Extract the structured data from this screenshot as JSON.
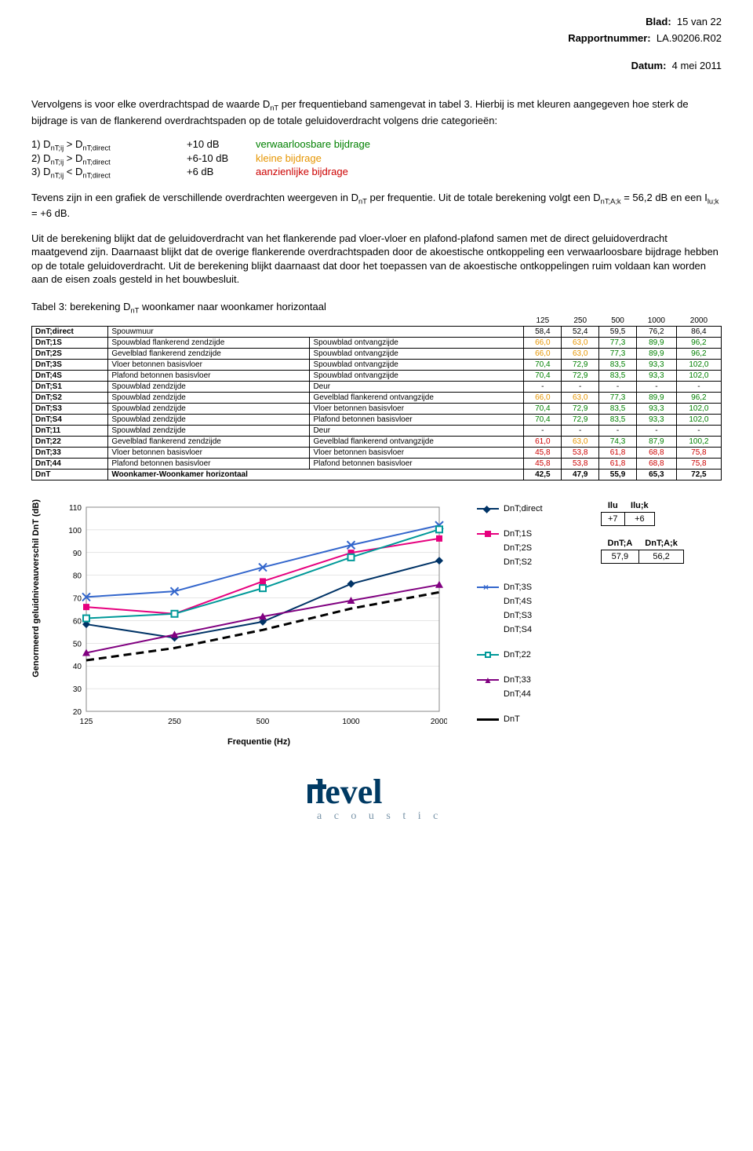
{
  "header": {
    "blad_label": "Blad:",
    "blad_value": "15 van 22",
    "rapport_label": "Rapportnummer:",
    "rapport_value": "LA.90206.R02",
    "datum_label": "Datum:",
    "datum_value": "4 mei 2011"
  },
  "body": {
    "p1": "Vervolgens is voor elke overdrachtspad de waarde D",
    "p1b": " per frequentieband samengevat in tabel 3. Hierbij is met kleuren aangegeven hoe sterk de bijdrage is van de flankerend overdrachtspaden op de totale geluidoverdracht volgens drie categorieën:",
    "cat1_l": "1) D",
    "cat1_m": " > D",
    "cat1_db": "+10 dB",
    "cat1_t": "verwaarloosbare bijdrage",
    "cat2_l": "2) D",
    "cat2_m": " > D",
    "cat2_db": "+6-10 dB",
    "cat2_t": "kleine bijdrage",
    "cat3_l": "3) D",
    "cat3_m": " < D",
    "cat3_db": "+6 dB",
    "cat3_t": "aanzienlijke bijdrage",
    "sub_ij": "nT;ij",
    "sub_dir": "nT;direct",
    "sub_nt": "nT",
    "p2a": "Tevens zijn in een grafiek de verschillende overdrachten weergeven in D",
    "p2b": " per frequentie. Uit de totale berekening volgt een D",
    "p2c": " = 56,2 dB en een I",
    "p2d": " = +6 dB.",
    "sub_ak": "nT;A;k",
    "sub_luk": "lu;k",
    "p3": "Uit de berekening blijkt dat de geluidoverdracht van het flankerende pad vloer-vloer en plafond-plafond samen met de direct geluidoverdracht maatgevend zijn. Daarnaast blijkt dat de overige flankerende overdrachtspaden door de akoestische ontkoppeling een verwaarloosbare bijdrage hebben op de totale geluidoverdracht. Uit de berekening blijkt daarnaast dat door het toepassen van de akoestische ontkoppelingen ruim voldaan kan worden aan de eisen zoals gesteld in het bouwbesluit.",
    "tbltitle_a": "Tabel 3: berekening D",
    "tbltitle_b": " woonkamer naar woonkamer horizontaal"
  },
  "colors": {
    "green": "#008000",
    "orange": "#e69500",
    "red": "#cc0000",
    "navy": "#003366",
    "magenta": "#e6007e",
    "blue": "#3366cc",
    "teal": "#009999",
    "purple": "#800080",
    "black": "#000000"
  },
  "table": {
    "freq_headers": [
      "125",
      "250",
      "500",
      "1000",
      "2000"
    ],
    "rows": [
      {
        "id": "DnT;direct",
        "d1": "Spouwmuur",
        "d2": "",
        "v": [
          "58,4",
          "52,4",
          "59,5",
          "76,2",
          "86,4"
        ],
        "c": [
          "k",
          "k",
          "k",
          "k",
          "k"
        ]
      },
      {
        "id": "DnT;1S",
        "d1": "Spouwblad flankerend zendzijde",
        "d2": "Spouwblad ontvangzijde",
        "v": [
          "66,0",
          "63,0",
          "77,3",
          "89,9",
          "96,2"
        ],
        "c": [
          "o",
          "o",
          "g",
          "g",
          "g"
        ]
      },
      {
        "id": "DnT;2S",
        "d1": "Gevelblad flankerend zendzijde",
        "d2": "Spouwblad ontvangzijde",
        "v": [
          "66,0",
          "63,0",
          "77,3",
          "89,9",
          "96,2"
        ],
        "c": [
          "o",
          "o",
          "g",
          "g",
          "g"
        ]
      },
      {
        "id": "DnT;3S",
        "d1": "Vloer betonnen basisvloer",
        "d2": "Spouwblad ontvangzijde",
        "v": [
          "70,4",
          "72,9",
          "83,5",
          "93,3",
          "102,0"
        ],
        "c": [
          "g",
          "g",
          "g",
          "g",
          "g"
        ]
      },
      {
        "id": "DnT;4S",
        "d1": "Plafond betonnen basisvloer",
        "d2": "Spouwblad ontvangzijde",
        "v": [
          "70,4",
          "72,9",
          "83,5",
          "93,3",
          "102,0"
        ],
        "c": [
          "g",
          "g",
          "g",
          "g",
          "g"
        ]
      },
      {
        "id": "DnT;S1",
        "d1": "Spouwblad zendzijde",
        "d2": "Deur",
        "v": [
          "-",
          "-",
          "-",
          "-",
          "-"
        ],
        "c": [
          "k",
          "k",
          "k",
          "k",
          "k"
        ]
      },
      {
        "id": "DnT;S2",
        "d1": "Spouwblad zendzijde",
        "d2": "Gevelblad flankerend ontvangzijde",
        "v": [
          "66,0",
          "63,0",
          "77,3",
          "89,9",
          "96,2"
        ],
        "c": [
          "o",
          "o",
          "g",
          "g",
          "g"
        ]
      },
      {
        "id": "DnT;S3",
        "d1": "Spouwblad zendzijde",
        "d2": "Vloer betonnen basisvloer",
        "v": [
          "70,4",
          "72,9",
          "83,5",
          "93,3",
          "102,0"
        ],
        "c": [
          "g",
          "g",
          "g",
          "g",
          "g"
        ]
      },
      {
        "id": "DnT;S4",
        "d1": "Spouwblad zendzijde",
        "d2": "Plafond betonnen basisvloer",
        "v": [
          "70,4",
          "72,9",
          "83,5",
          "93,3",
          "102,0"
        ],
        "c": [
          "g",
          "g",
          "g",
          "g",
          "g"
        ]
      },
      {
        "id": "DnT;11",
        "d1": "Spouwblad zendzijde",
        "d2": "Deur",
        "v": [
          "-",
          "-",
          "-",
          "-",
          "-"
        ],
        "c": [
          "k",
          "k",
          "k",
          "k",
          "k"
        ]
      },
      {
        "id": "DnT;22",
        "d1": "Gevelblad flankerend zendzijde",
        "d2": "Gevelblad flankerend ontvangzijde",
        "v": [
          "61,0",
          "63,0",
          "74,3",
          "87,9",
          "100,2"
        ],
        "c": [
          "r",
          "o",
          "g",
          "g",
          "g"
        ]
      },
      {
        "id": "DnT;33",
        "d1": "Vloer betonnen basisvloer",
        "d2": "Vloer betonnen basisvloer",
        "v": [
          "45,8",
          "53,8",
          "61,8",
          "68,8",
          "75,8"
        ],
        "c": [
          "r",
          "r",
          "r",
          "r",
          "r"
        ]
      },
      {
        "id": "DnT;44",
        "d1": "Plafond betonnen basisvloer",
        "d2": "Plafond betonnen basisvloer",
        "v": [
          "45,8",
          "53,8",
          "61,8",
          "68,8",
          "75,8"
        ],
        "c": [
          "r",
          "r",
          "r",
          "r",
          "r"
        ]
      },
      {
        "id": "DnT",
        "d1": "Woonkamer-Woonkamer horizontaal",
        "d2": "",
        "v": [
          "42,5",
          "47,9",
          "55,9",
          "65,3",
          "72,5"
        ],
        "c": [
          "k",
          "k",
          "k",
          "k",
          "k"
        ],
        "bold": true
      }
    ]
  },
  "chart": {
    "ylabel": "Genormeerd geluidniveauverschil DnT (dB)",
    "xlabel": "Frequentie (Hz)",
    "xticks": [
      "125",
      "250",
      "500",
      "1000",
      "2000"
    ],
    "yticks": [
      20,
      30,
      40,
      50,
      60,
      70,
      80,
      90,
      100,
      110
    ],
    "ymin": 20,
    "ymax": 110,
    "series": [
      {
        "name": "DnT;direct",
        "color": "#003366",
        "marker": "diamond",
        "vals": [
          58.4,
          52.4,
          59.5,
          76.2,
          86.4
        ]
      },
      {
        "name": "DnT;1S",
        "color": "#e6007e",
        "marker": "square",
        "vals": [
          66,
          63,
          77.3,
          89.9,
          96.2
        ]
      },
      {
        "name": "DnT;3S",
        "color": "#3366cc",
        "marker": "x",
        "vals": [
          70.4,
          72.9,
          83.5,
          93.3,
          102.0
        ]
      },
      {
        "name": "DnT;22",
        "color": "#009999",
        "marker": "squareO",
        "vals": [
          61,
          63,
          74.3,
          87.9,
          100.2
        ]
      },
      {
        "name": "DnT;33",
        "color": "#800080",
        "marker": "triangle",
        "vals": [
          45.8,
          53.8,
          61.8,
          68.8,
          75.8
        ]
      },
      {
        "name": "DnT",
        "color": "#000000",
        "marker": "dash",
        "vals": [
          42.5,
          47.9,
          55.9,
          65.3,
          72.5
        ]
      }
    ],
    "legend_groups": [
      {
        "color": "#003366",
        "marker": "diamond",
        "items": [
          "DnT;direct"
        ]
      },
      {
        "color": "#e6007e",
        "marker": "square",
        "items": [
          "DnT;1S",
          "DnT;2S",
          "DnT;S2"
        ]
      },
      {
        "color": "#3366cc",
        "marker": "x",
        "items": [
          "DnT;3S",
          "DnT;4S",
          "DnT;S3",
          "DnT;S4"
        ]
      },
      {
        "color": "#009999",
        "marker": "squareO",
        "items": [
          "DnT;22"
        ]
      },
      {
        "color": "#800080",
        "marker": "triangle",
        "items": [
          "DnT;33",
          "DnT;44"
        ]
      },
      {
        "color": "#000000",
        "marker": "dash",
        "items": [
          "DnT"
        ]
      }
    ]
  },
  "side": {
    "ilu_h1": "Ilu",
    "ilu_h2": "Ilu;k",
    "ilu_v1": "+7",
    "ilu_v2": "+6",
    "da_h1": "DnT;A",
    "da_h2": "DnT;A;k",
    "da_v1": "57,9",
    "da_v2": "56,2"
  },
  "logo": {
    "name": "level",
    "sub": "a c o u s t i c s"
  }
}
